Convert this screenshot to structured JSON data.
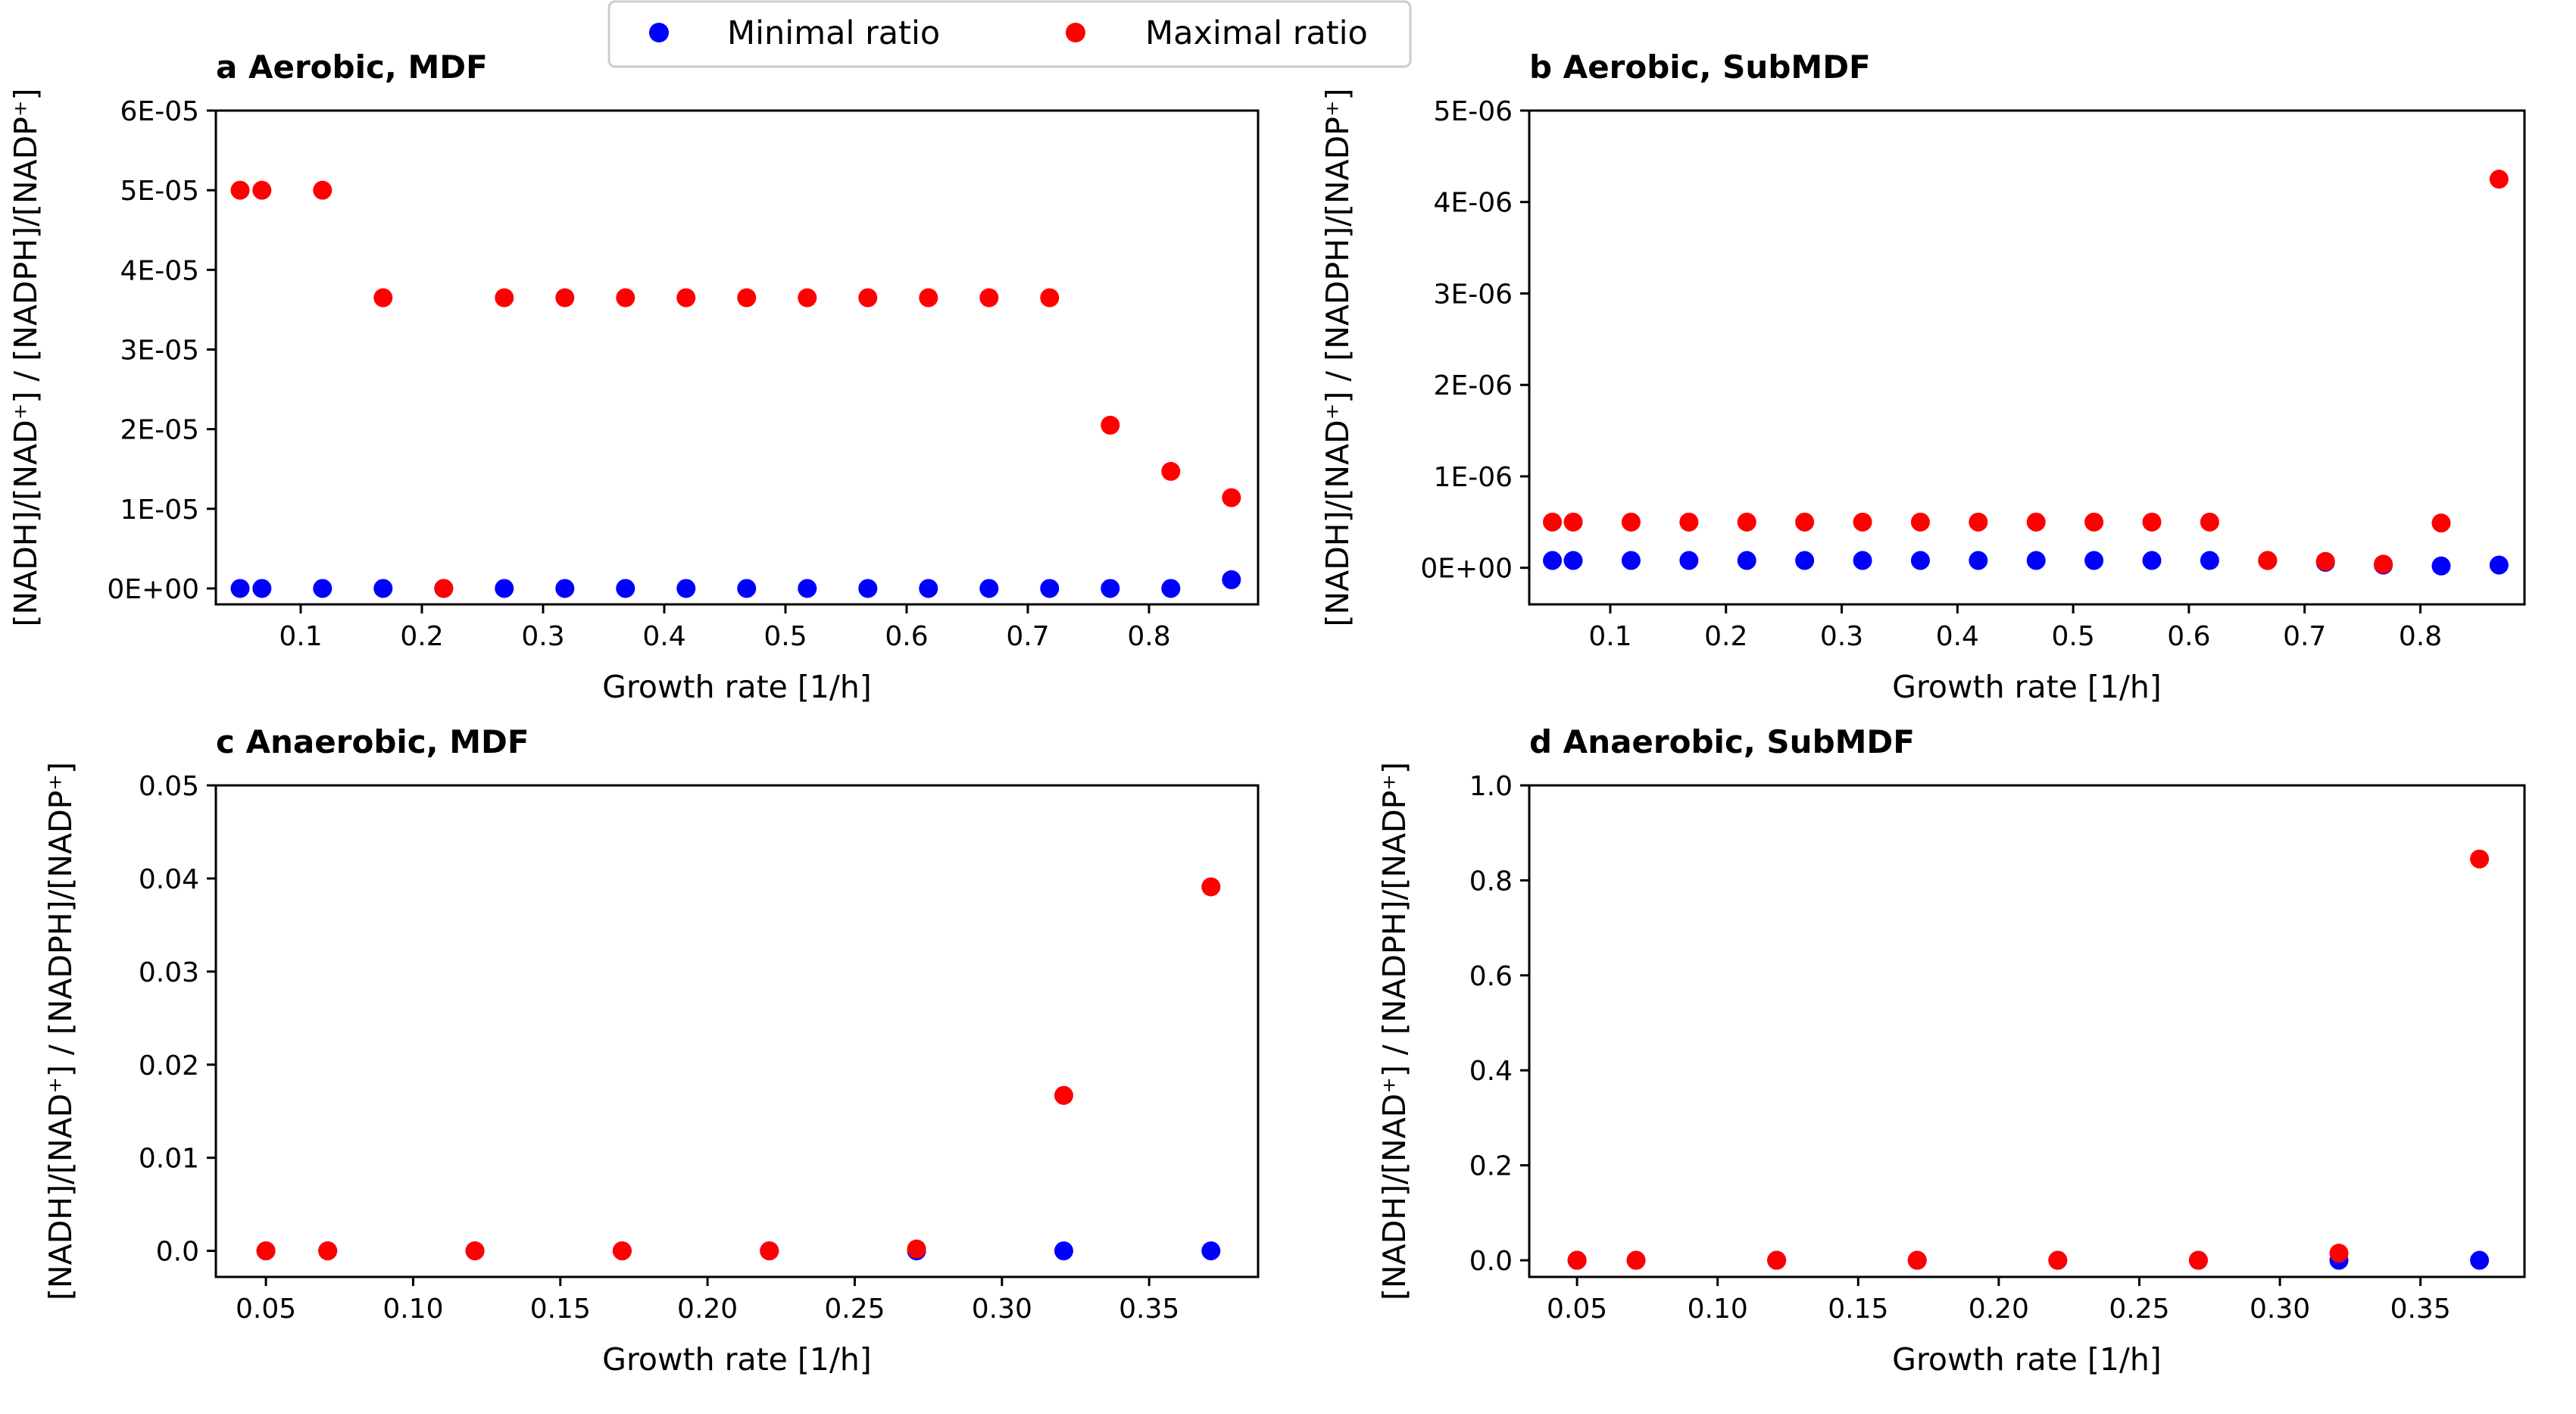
{
  "legend": {
    "items": [
      {
        "label": "Minimal ratio",
        "color": "#0000ff"
      },
      {
        "label": "Maximal ratio",
        "color": "#ff0000"
      }
    ]
  },
  "chart_data": [
    {
      "type": "scatter",
      "panel": "a",
      "title": "Aerobic, MDF",
      "xlabel": "Growth rate [1/h]",
      "ylabel": "[NADH]/[NAD⁺] / [NADPH]/[NADP⁺]",
      "xlim": [
        0.03,
        0.89
      ],
      "ylim": [
        -2e-06,
        6e-05
      ],
      "xticks": [
        "0.1",
        "0.2",
        "0.3",
        "0.4",
        "0.5",
        "0.6",
        "0.7",
        "0.8"
      ],
      "xtick_values": [
        0.1,
        0.2,
        0.3,
        0.4,
        0.5,
        0.6,
        0.7,
        0.8
      ],
      "yticks": [
        "0E+00",
        "1E-05",
        "2E-05",
        "3E-05",
        "4E-05",
        "5E-05",
        "6E-05"
      ],
      "ytick_values": [
        0,
        1e-05,
        2e-05,
        3e-05,
        4e-05,
        5e-05,
        6e-05
      ],
      "grid": false,
      "series": [
        {
          "name": "Minimal ratio",
          "color": "#0000ff",
          "x": [
            0.05,
            0.068,
            0.118,
            0.168,
            0.218,
            0.268,
            0.318,
            0.368,
            0.418,
            0.468,
            0.518,
            0.568,
            0.618,
            0.668,
            0.718,
            0.768,
            0.818,
            0.868
          ],
          "y": [
            0,
            0,
            0,
            0,
            0,
            0,
            0,
            0,
            0,
            0,
            0,
            0,
            0,
            0,
            0,
            0,
            0,
            1.1e-06
          ]
        },
        {
          "name": "Maximal ratio",
          "color": "#ff0000",
          "x": [
            0.05,
            0.068,
            0.118,
            0.168,
            0.218,
            0.268,
            0.318,
            0.368,
            0.418,
            0.468,
            0.518,
            0.568,
            0.618,
            0.668,
            0.718,
            0.768,
            0.818,
            0.868
          ],
          "y": [
            5e-05,
            5e-05,
            5e-05,
            3.65e-05,
            0,
            3.65e-05,
            3.65e-05,
            3.65e-05,
            3.65e-05,
            3.65e-05,
            3.65e-05,
            3.65e-05,
            3.65e-05,
            3.65e-05,
            3.65e-05,
            2.05e-05,
            1.47e-05,
            1.14e-05
          ]
        }
      ]
    },
    {
      "type": "scatter",
      "panel": "b",
      "title": "Aerobic, SubMDF",
      "xlabel": "Growth rate [1/h]",
      "ylabel": "[NADH]/[NAD⁺] / [NADPH]/[NADP⁺]",
      "xlim": [
        0.03,
        0.89
      ],
      "ylim": [
        -4e-07,
        5e-06
      ],
      "xticks": [
        "0.1",
        "0.2",
        "0.3",
        "0.4",
        "0.5",
        "0.6",
        "0.7",
        "0.8"
      ],
      "xtick_values": [
        0.1,
        0.2,
        0.3,
        0.4,
        0.5,
        0.6,
        0.7,
        0.8
      ],
      "yticks": [
        "0E+00",
        "1E-06",
        "2E-06",
        "3E-06",
        "4E-06",
        "5E-06"
      ],
      "ytick_values": [
        0,
        1e-06,
        2e-06,
        3e-06,
        4e-06,
        5e-06
      ],
      "grid": false,
      "series": [
        {
          "name": "Minimal ratio",
          "color": "#0000ff",
          "x": [
            0.05,
            0.068,
            0.118,
            0.168,
            0.218,
            0.268,
            0.318,
            0.368,
            0.418,
            0.468,
            0.518,
            0.568,
            0.618,
            0.668,
            0.718,
            0.768,
            0.818,
            0.868
          ],
          "y": [
            8e-08,
            8e-08,
            8e-08,
            8e-08,
            8e-08,
            8e-08,
            8e-08,
            8e-08,
            8e-08,
            8e-08,
            8e-08,
            8e-08,
            8e-08,
            8e-08,
            6e-08,
            3e-08,
            2e-08,
            3e-08
          ]
        },
        {
          "name": "Maximal ratio",
          "color": "#ff0000",
          "x": [
            0.05,
            0.068,
            0.118,
            0.168,
            0.218,
            0.268,
            0.318,
            0.368,
            0.418,
            0.468,
            0.518,
            0.568,
            0.618,
            0.668,
            0.718,
            0.768,
            0.818,
            0.868
          ],
          "y": [
            5e-07,
            5e-07,
            5e-07,
            5e-07,
            5e-07,
            5e-07,
            5e-07,
            5e-07,
            5e-07,
            5e-07,
            5e-07,
            5e-07,
            5e-07,
            8e-08,
            7e-08,
            4e-08,
            4.9e-07,
            4.25e-06
          ]
        }
      ]
    },
    {
      "type": "scatter",
      "panel": "c",
      "title": "Anaerobic, MDF",
      "xlabel": "Growth rate [1/h]",
      "ylabel": "[NADH]/[NAD⁺] / [NADPH]/[NADP⁺]",
      "xlim": [
        0.033,
        0.387
      ],
      "ylim": [
        -0.0028,
        0.05
      ],
      "xticks": [
        "0.05",
        "0.10",
        "0.15",
        "0.20",
        "0.25",
        "0.30",
        "0.35"
      ],
      "xtick_values": [
        0.05,
        0.1,
        0.15,
        0.2,
        0.25,
        0.3,
        0.35
      ],
      "yticks": [
        "0.0",
        "0.01",
        "0.02",
        "0.03",
        "0.04",
        "0.05"
      ],
      "ytick_values": [
        0,
        0.01,
        0.02,
        0.03,
        0.04,
        0.05
      ],
      "grid": false,
      "series": [
        {
          "name": "Minimal ratio",
          "color": "#0000ff",
          "x": [
            0.05,
            0.071,
            0.121,
            0.171,
            0.221,
            0.271,
            0.321,
            0.371
          ],
          "y": [
            0,
            0,
            0,
            0,
            0,
            0,
            0,
            0
          ]
        },
        {
          "name": "Maximal ratio",
          "color": "#ff0000",
          "x": [
            0.05,
            0.071,
            0.121,
            0.171,
            0.221,
            0.271,
            0.321,
            0.371
          ],
          "y": [
            0,
            0,
            0,
            0,
            0,
            0.0002,
            0.0167,
            0.0391
          ]
        }
      ]
    },
    {
      "type": "scatter",
      "panel": "d",
      "title": "Anaerobic, SubMDF",
      "xlabel": "Growth rate [1/h]",
      "ylabel": "[NADH]/[NAD⁺] / [NADPH]/[NADP⁺]",
      "xlim": [
        0.033,
        0.387
      ],
      "ylim": [
        -0.035,
        1.0
      ],
      "xticks": [
        "0.05",
        "0.10",
        "0.15",
        "0.20",
        "0.25",
        "0.30",
        "0.35"
      ],
      "xtick_values": [
        0.05,
        0.1,
        0.15,
        0.2,
        0.25,
        0.3,
        0.35
      ],
      "yticks": [
        "0.0",
        "0.2",
        "0.4",
        "0.6",
        "0.8",
        "1.0"
      ],
      "ytick_values": [
        0,
        0.2,
        0.4,
        0.6,
        0.8,
        1.0
      ],
      "grid": false,
      "series": [
        {
          "name": "Minimal ratio",
          "color": "#0000ff",
          "x": [
            0.05,
            0.071,
            0.121,
            0.171,
            0.221,
            0.271,
            0.321,
            0.371
          ],
          "y": [
            0,
            0,
            0,
            0,
            0,
            0,
            0,
            0
          ]
        },
        {
          "name": "Maximal ratio",
          "color": "#ff0000",
          "x": [
            0.05,
            0.071,
            0.121,
            0.171,
            0.221,
            0.271,
            0.321,
            0.371
          ],
          "y": [
            0,
            0,
            0,
            0,
            0,
            0,
            0.015,
            0.845
          ]
        }
      ]
    }
  ]
}
